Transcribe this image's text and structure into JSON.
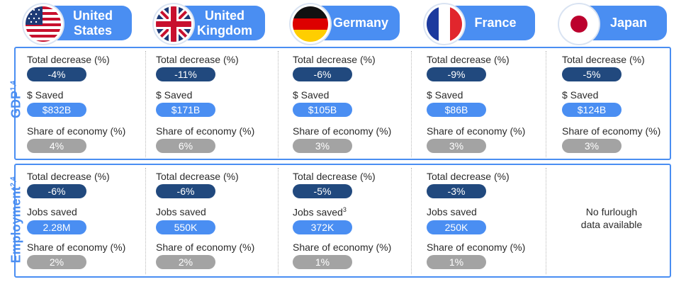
{
  "countries": [
    {
      "name_line1": "United",
      "name_line2": "States",
      "flag": "us-flag-icon"
    },
    {
      "name_line1": "United",
      "name_line2": "Kingdom",
      "flag": "uk-flag-icon"
    },
    {
      "name_line1": "Germany",
      "name_line2": "",
      "flag": "germany-flag-icon"
    },
    {
      "name_line1": "France",
      "name_line2": "",
      "flag": "france-flag-icon"
    },
    {
      "name_line1": "Japan",
      "name_line2": "",
      "flag": "japan-flag-icon"
    }
  ],
  "gdp": {
    "section_label": "GDP",
    "section_sup": "1,4",
    "label_decrease": "Total decrease (%)",
    "label_saved": "$ Saved",
    "label_share": "Share of economy (%)",
    "decrease": [
      "-4%",
      "-11%",
      "-6%",
      "-9%",
      "-5%"
    ],
    "saved": [
      "$832B",
      "$171B",
      "$105B",
      "$86B",
      "$124B"
    ],
    "share": [
      "4%",
      "6%",
      "3%",
      "3%",
      "3%"
    ]
  },
  "employment": {
    "section_label": "Employment",
    "section_sup": "2,4",
    "label_decrease": "Total decrease (%)",
    "label_jobs": "Jobs saved",
    "label_jobs_sup_germany": "3",
    "label_share": "Share of economy (%)",
    "decrease": [
      "-6%",
      "-6%",
      "-5%",
      "-3%"
    ],
    "jobs": [
      "2.28M",
      "550K",
      "372K",
      "250K"
    ],
    "share": [
      "2%",
      "2%",
      "1%",
      "1%"
    ],
    "no_data_line1": "No furlough",
    "no_data_line2": "data available"
  },
  "colors": {
    "accent_blue": "#4a8ef2",
    "dark_navy": "#21497e",
    "gray": "#a3a3a3"
  }
}
